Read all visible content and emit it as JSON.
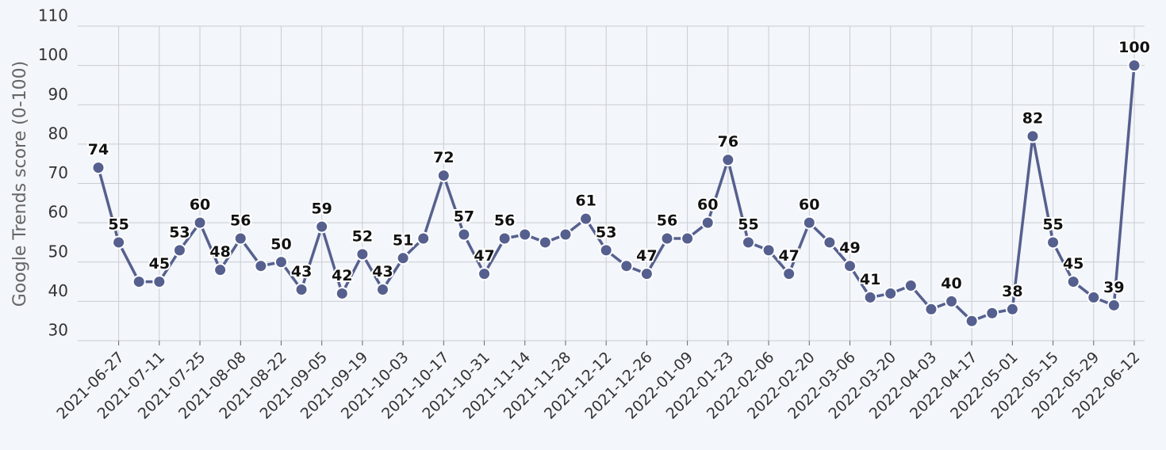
{
  "chart_data": {
    "type": "line",
    "y_label": "Google Trends score (0-100)",
    "x": [
      "2021-06-20",
      "2021-06-27",
      "2021-07-04",
      "2021-07-11",
      "2021-07-18",
      "2021-07-25",
      "2021-08-01",
      "2021-08-08",
      "2021-08-15",
      "2021-08-22",
      "2021-08-29",
      "2021-09-05",
      "2021-09-12",
      "2021-09-19",
      "2021-09-26",
      "2021-10-03",
      "2021-10-10",
      "2021-10-17",
      "2021-10-24",
      "2021-10-31",
      "2021-11-07",
      "2021-11-14",
      "2021-11-21",
      "2021-11-28",
      "2021-12-05",
      "2021-12-12",
      "2021-12-19",
      "2021-12-26",
      "2022-01-02",
      "2022-01-09",
      "2022-01-16",
      "2022-01-23",
      "2022-01-30",
      "2022-02-06",
      "2022-02-13",
      "2022-02-20",
      "2022-02-27",
      "2022-03-06",
      "2022-03-13",
      "2022-03-20",
      "2022-03-27",
      "2022-04-03",
      "2022-04-10",
      "2022-04-17",
      "2022-04-24",
      "2022-05-01",
      "2022-05-08",
      "2022-05-15",
      "2022-05-22",
      "2022-05-29",
      "2022-06-05",
      "2022-06-12"
    ],
    "series": [
      {
        "name": "Google Trends score",
        "color": "#56608f",
        "values": [
          74,
          55,
          45,
          45,
          53,
          60,
          48,
          56,
          49,
          50,
          43,
          59,
          42,
          52,
          43,
          51,
          56,
          72,
          57,
          47,
          56,
          57,
          55,
          57,
          61,
          53,
          49,
          47,
          56,
          56,
          60,
          76,
          55,
          53,
          47,
          60,
          55,
          49,
          41,
          42,
          44,
          38,
          40,
          35,
          37,
          38,
          82,
          55,
          45,
          41,
          39,
          100
        ],
        "value_labels": [
          "74",
          "55",
          null,
          "45",
          "53",
          "60",
          "48",
          "56",
          null,
          "50",
          "43",
          "59",
          "42",
          "52",
          "43",
          "51",
          null,
          "72",
          "57",
          "47",
          "56",
          null,
          null,
          null,
          "61",
          "53",
          null,
          "47",
          "56",
          null,
          "60",
          "76",
          "55",
          null,
          "47",
          "60",
          null,
          "49",
          "41",
          null,
          null,
          null,
          "40",
          null,
          null,
          "38",
          "82",
          "55",
          "45",
          null,
          "39",
          "100"
        ]
      }
    ],
    "xticks": [
      "2021-06-27",
      "2021-07-11",
      "2021-07-25",
      "2021-08-08",
      "2021-08-22",
      "2021-09-05",
      "2021-09-19",
      "2021-10-03",
      "2021-10-17",
      "2021-10-31",
      "2021-11-14",
      "2021-11-28",
      "2021-12-12",
      "2021-12-26",
      "2022-01-09",
      "2022-01-23",
      "2022-02-06",
      "2022-02-20",
      "2022-03-06",
      "2022-03-20",
      "2022-04-03",
      "2022-04-17",
      "2022-05-01",
      "2022-05-15",
      "2022-05-29",
      "2022-06-12"
    ],
    "ylim": [
      30,
      110
    ],
    "yticks": [
      30,
      40,
      50,
      60,
      70,
      80,
      90,
      100,
      110
    ],
    "grid": true
  }
}
